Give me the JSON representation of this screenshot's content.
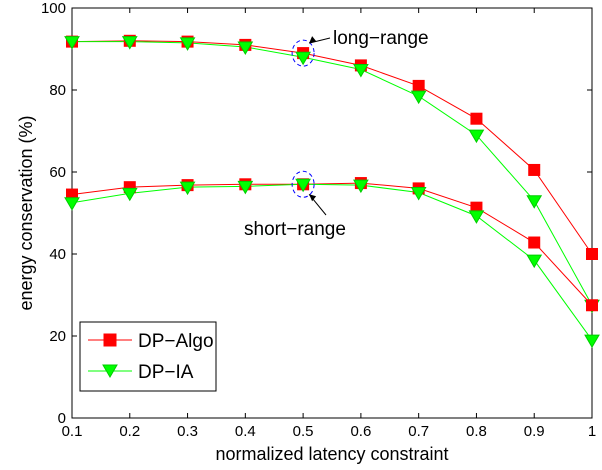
{
  "chart_data": {
    "type": "line",
    "title": "",
    "xlabel": "normalized latency constraint",
    "ylabel": "energy conservation (%)",
    "xlim": [
      0.1,
      1.0
    ],
    "ylim": [
      0,
      100
    ],
    "x": [
      0.1,
      0.2,
      0.3,
      0.4,
      0.5,
      0.6,
      0.7,
      0.8,
      0.9,
      1.0
    ],
    "xticks": [
      "0.1",
      "0.2",
      "0.3",
      "0.4",
      "0.5",
      "0.6",
      "0.7",
      "0.8",
      "0.9",
      "1"
    ],
    "yticks": [
      "0",
      "20",
      "40",
      "60",
      "80",
      "100"
    ],
    "grid": false,
    "legend_position": "bottom-left",
    "legend": [
      {
        "name": "DP−Algo",
        "color": "#ff0000",
        "marker": "square"
      },
      {
        "name": "DP−IA",
        "color": "#00ff00",
        "marker": "triangle-down"
      }
    ],
    "series": [
      {
        "name": "DP−Algo",
        "group": "long-range",
        "color": "#ff0000",
        "marker": "square",
        "values": [
          91.8,
          92.0,
          91.8,
          91.0,
          89.0,
          86.0,
          81.0,
          73.0,
          60.5,
          40.0
        ]
      },
      {
        "name": "DP−IA",
        "group": "long-range",
        "color": "#00ff00",
        "marker": "triangle-down",
        "values": [
          91.8,
          91.8,
          91.5,
          90.5,
          88.0,
          85.0,
          78.5,
          69.0,
          53.0,
          27.5
        ]
      },
      {
        "name": "DP−Algo",
        "group": "short-range",
        "color": "#ff0000",
        "marker": "square",
        "values": [
          54.5,
          56.3,
          56.8,
          57.0,
          57.0,
          57.3,
          56.0,
          51.3,
          42.8,
          27.5
        ]
      },
      {
        "name": "DP−IA",
        "group": "short-range",
        "color": "#00ff00",
        "marker": "triangle-down",
        "values": [
          52.5,
          54.8,
          56.3,
          56.5,
          57.0,
          56.8,
          55.0,
          49.3,
          38.5,
          19.0
        ]
      }
    ],
    "annotations": [
      {
        "text": "long−range",
        "x": 0.5,
        "y": 89
      },
      {
        "text": "short−range",
        "x": 0.5,
        "y": 57
      }
    ]
  }
}
